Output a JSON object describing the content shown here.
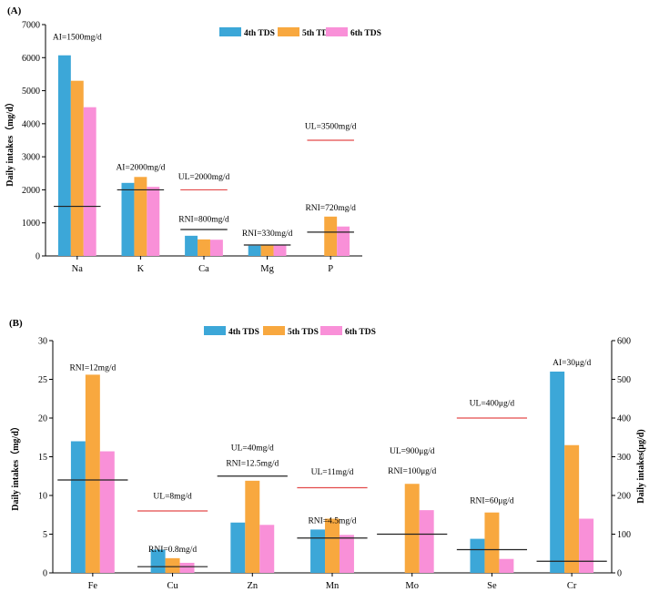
{
  "colors": {
    "series": [
      "#3ca7d8",
      "#f8a83f",
      "#f990d8"
    ],
    "black_line": "#222222",
    "red_line": "#e34a4a"
  },
  "chart_data": [
    {
      "type": "bar",
      "panel_label": "(A)",
      "categories": [
        "Na",
        "K",
        "Ca",
        "Mg",
        "P"
      ],
      "series": [
        {
          "name": "4th TDS",
          "values": [
            6070,
            2210,
            610,
            310,
            0
          ]
        },
        {
          "name": "5th TDS",
          "values": [
            5300,
            2390,
            500,
            320,
            1190
          ]
        },
        {
          "name": "6th TDS",
          "values": [
            4500,
            2090,
            490,
            320,
            890
          ]
        }
      ],
      "ylabel": "Daily intakes（mg/d）",
      "ylim": [
        0,
        7000
      ],
      "yticks": [
        0,
        1000,
        2000,
        3000,
        4000,
        5000,
        6000,
        7000
      ],
      "legend": "top-right",
      "reference_lines": [
        {
          "category": "Na",
          "label": "AI=1500mg/d",
          "value": 1500,
          "color": "black",
          "label_value": 6550
        },
        {
          "category": "K",
          "label": "AI=2000mg/d",
          "value": 2000,
          "color": "black",
          "label_value": 2600
        },
        {
          "category": "Ca",
          "label": "UL=2000mg/d",
          "value": 2000,
          "color": "red",
          "label_value": 2320
        },
        {
          "category": "Ca",
          "label": "RNI=800mg/d",
          "value": 800,
          "color": "black",
          "label_value": 1040
        },
        {
          "category": "Mg",
          "label": "RNI=330mg/d",
          "value": 330,
          "color": "black",
          "label_value": 600
        },
        {
          "category": "P",
          "label": "RNI=720mg/d",
          "value": 720,
          "color": "black",
          "label_value": 1380
        },
        {
          "category": "P",
          "label": "UL=3500mg/d",
          "value": 3500,
          "color": "red",
          "label_value": 3840
        }
      ]
    },
    {
      "type": "bar",
      "panel_label": "(B)",
      "categories": [
        "Fe",
        "Cu",
        "Zn",
        "Mn",
        "Mo",
        "Se",
        "Cr"
      ],
      "series": [
        {
          "name": "4th TDS",
          "values": [
            17.0,
            3.0,
            6.5,
            5.6,
            0,
            4.4,
            26.0
          ]
        },
        {
          "name": "5th TDS",
          "values": [
            25.6,
            1.9,
            11.9,
            7.0,
            11.5,
            7.8,
            16.5
          ]
        },
        {
          "name": "6th TDS",
          "values": [
            15.7,
            1.3,
            6.2,
            4.9,
            8.1,
            1.8,
            7.0
          ]
        }
      ],
      "ylabel": "Daily intakes（mg/d）",
      "ylabel_right": "Daily intakes(μg/d)",
      "ylim": [
        0,
        30
      ],
      "ylim_right": [
        0,
        600
      ],
      "yticks": [
        0,
        5,
        10,
        15,
        20,
        25,
        30
      ],
      "yticks_right": [
        0,
        100,
        200,
        300,
        400,
        500,
        600
      ],
      "right_axis_categories": [
        "Mo",
        "Se",
        "Cr"
      ],
      "legend": "top-right",
      "reference_lines": [
        {
          "category": "Fe",
          "label": "RNI=12mg/d",
          "value": 12,
          "axis": "left",
          "color": "black",
          "label_value": 26.2
        },
        {
          "category": "Cu",
          "label": "UL=8mg/d",
          "value": 8,
          "axis": "left",
          "color": "red",
          "label_value": 9.6
        },
        {
          "category": "Cu",
          "label": "RNI=0.8mg/d",
          "value": 0.8,
          "axis": "left",
          "color": "black",
          "label_value": 2.7
        },
        {
          "category": "Zn",
          "label": "UL=40mg/d",
          "value": 12.5,
          "axis": "left",
          "color": "none",
          "label_value": 15.8
        },
        {
          "category": "Zn",
          "label": "RNI=12.5mg/d",
          "value": 12.5,
          "axis": "left",
          "color": "black",
          "label_value": 13.8
        },
        {
          "category": "Mn",
          "label": "UL=11mg/d",
          "value": 11,
          "axis": "left",
          "color": "red",
          "label_value": 12.7
        },
        {
          "category": "Mn",
          "label": "RNI=4.5mg/d",
          "value": 4.5,
          "axis": "left",
          "color": "black",
          "label_value": 6.4
        },
        {
          "category": "Mo",
          "label": "UL=900μg/d",
          "value": 0,
          "axis": "left",
          "color": "none",
          "label_value": 15.4
        },
        {
          "category": "Mo",
          "label": "RNI=100μg/d",
          "value": 100,
          "axis": "right",
          "color": "black",
          "label_value": 12.8
        },
        {
          "category": "Se",
          "label": "UL=400μg/d",
          "value": 400,
          "axis": "right",
          "color": "red",
          "label_value": 21.6
        },
        {
          "category": "Se",
          "label": "RNI=60μg/d",
          "value": 60,
          "axis": "right",
          "color": "black",
          "label_value": 9.0
        },
        {
          "category": "Cr",
          "label": "AI=30μg/d",
          "value": 30,
          "axis": "right",
          "color": "black",
          "label_value": 26.8
        }
      ]
    }
  ]
}
